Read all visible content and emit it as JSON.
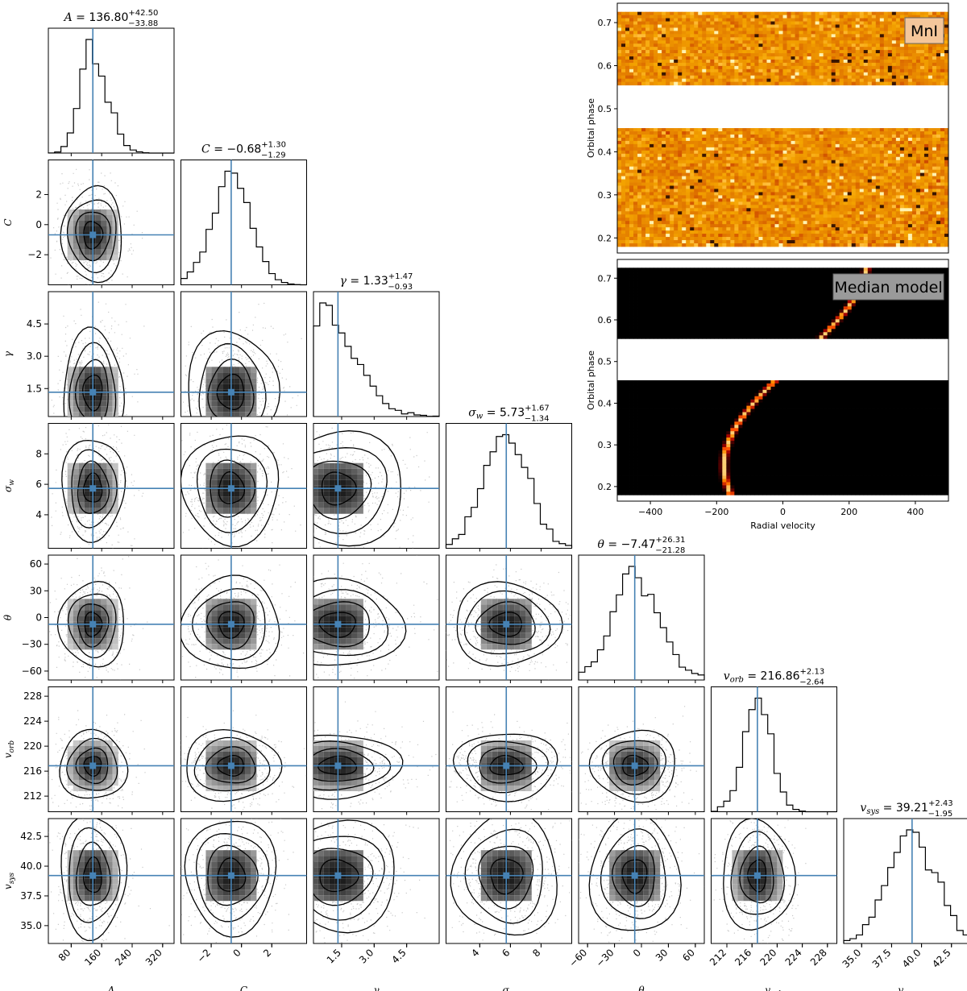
{
  "chart_data": [
    {
      "type": "corner",
      "parameters": [
        {
          "key": "A",
          "label": "A",
          "median": 136.8,
          "plus": "+42.50",
          "minus": "−33.88",
          "title_value": "136.80",
          "range": [
            20,
            350
          ],
          "ticks": [
            80,
            160,
            240,
            320
          ],
          "tick_labels": [
            "80",
            "160",
            "240",
            "320"
          ],
          "sd": 34
        },
        {
          "key": "C",
          "label": "C",
          "median": -0.68,
          "plus": "+1.30",
          "minus": "−1.29",
          "title_value": "−0.68",
          "range": [
            -4,
            4.3
          ],
          "ticks": [
            -2,
            0,
            2
          ],
          "tick_labels": [
            "−2",
            "0",
            "2"
          ],
          "sd": 1.25
        },
        {
          "key": "gamma",
          "label": "γ",
          "median": 1.33,
          "plus": "+1.47",
          "minus": "−0.93",
          "title_value": "1.33",
          "range": [
            0.2,
            6
          ],
          "ticks": [
            1.5,
            3.0,
            4.5
          ],
          "tick_labels": [
            "1.5",
            "3.0",
            "4.5"
          ],
          "sd": 1.2
        },
        {
          "key": "sigma_w",
          "label": "σ",
          "sub": "w",
          "median": 5.73,
          "plus": "+1.67",
          "minus": "−1.34",
          "title_value": "5.73",
          "range": [
            1.8,
            10
          ],
          "ticks": [
            4,
            6,
            8
          ],
          "tick_labels": [
            "4",
            "6",
            "8"
          ],
          "sd": 1.45
        },
        {
          "key": "theta",
          "label": "θ",
          "median": -7.47,
          "plus": "+26.31",
          "minus": "−21.28",
          "title_value": "−7.47",
          "range": [
            -70,
            70
          ],
          "ticks": [
            -60,
            -30,
            0,
            30,
            60
          ],
          "tick_labels": [
            "−60",
            "−30",
            "0",
            "30",
            "60"
          ],
          "sd": 20
        },
        {
          "key": "v_orb",
          "label": "v",
          "sub": "orb",
          "median": 216.86,
          "plus": "+2.13",
          "minus": "−2.64",
          "title_value": "216.86",
          "range": [
            209.5,
            229.5
          ],
          "ticks": [
            212,
            216,
            220,
            224,
            228
          ],
          "tick_labels": [
            "212",
            "216",
            "220",
            "224",
            "228"
          ],
          "sd": 2.2
        },
        {
          "key": "v_sys",
          "label": "v",
          "sub": "sys",
          "median": 39.21,
          "plus": "+2.43",
          "minus": "−1.95",
          "title_value": "39.21",
          "range": [
            33.5,
            44
          ],
          "ticks": [
            35.0,
            37.5,
            40.0,
            42.5
          ],
          "tick_labels": [
            "35.0",
            "37.5",
            "40.0",
            "42.5"
          ],
          "sd": 2.0
        }
      ],
      "truth_line_color": "#4682b4",
      "hist_color": "#000000",
      "scatter_color": "#808080",
      "grid": false
    },
    {
      "type": "heatmap",
      "panel": "data",
      "legend_text": "MnI",
      "legend_position": "top-right",
      "ylabel": "Orbital phase",
      "yticks": [
        0.2,
        0.3,
        0.4,
        0.5,
        0.6,
        0.7
      ],
      "ytick_labels": [
        "0.2",
        "0.3",
        "0.4",
        "0.5",
        "0.6",
        "0.7"
      ],
      "ylim": [
        0.165,
        0.745
      ],
      "xlim": [
        -500,
        500
      ],
      "phase_coverage": [
        [
          0.18,
          0.455
        ],
        [
          0.555,
          0.725
        ]
      ],
      "colormap": "afmhot"
    },
    {
      "type": "heatmap",
      "panel": "model",
      "legend_text": "Median model",
      "legend_position": "top-right",
      "ylabel": "Orbital phase",
      "xlabel": "Radial velocity",
      "yticks": [
        0.2,
        0.3,
        0.4,
        0.5,
        0.6,
        0.7
      ],
      "ytick_labels": [
        "0.2",
        "0.3",
        "0.4",
        "0.5",
        "0.6",
        "0.7"
      ],
      "xticks": [
        -400,
        -200,
        0,
        200,
        400
      ],
      "xtick_labels": [
        "−400",
        "−200",
        "0",
        "200",
        "400"
      ],
      "ylim": [
        0.165,
        0.745
      ],
      "xlim": [
        -500,
        500
      ],
      "phase_coverage": [
        [
          0.18,
          0.455
        ],
        [
          0.555,
          0.725
        ]
      ],
      "model": {
        "K": 216.86,
        "v_sys": 39.21,
        "phase_offset": 0.0
      },
      "colormap": "afmhot"
    }
  ]
}
